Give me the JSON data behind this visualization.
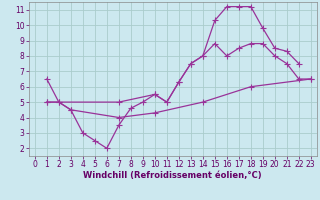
{
  "background_color": "#cce8ef",
  "line_color": "#993399",
  "grid_color": "#aacccc",
  "xlabel": "Windchill (Refroidissement éolien,°C)",
  "xlim": [
    -0.5,
    23.5
  ],
  "ylim": [
    1.5,
    11.5
  ],
  "xticks": [
    0,
    1,
    2,
    3,
    4,
    5,
    6,
    7,
    8,
    9,
    10,
    11,
    12,
    13,
    14,
    15,
    16,
    17,
    18,
    19,
    20,
    21,
    22,
    23
  ],
  "yticks": [
    2,
    3,
    4,
    5,
    6,
    7,
    8,
    9,
    10,
    11
  ],
  "line1_x": [
    1,
    2,
    3,
    4,
    5,
    6,
    7,
    8,
    9,
    10,
    11,
    12,
    13,
    14,
    15,
    16,
    17,
    18,
    19,
    20,
    21,
    22
  ],
  "line1_y": [
    6.5,
    5.0,
    4.5,
    3.0,
    2.5,
    2.0,
    3.5,
    4.6,
    5.0,
    5.5,
    5.0,
    6.3,
    7.5,
    8.0,
    10.3,
    11.2,
    11.2,
    11.2,
    9.8,
    8.5,
    8.3,
    7.5
  ],
  "line2_x": [
    1,
    7,
    10,
    11,
    12,
    13,
    14,
    15,
    16,
    17,
    18,
    19,
    20,
    21,
    22,
    23
  ],
  "line2_y": [
    5.0,
    5.0,
    5.5,
    5.0,
    6.3,
    7.5,
    8.0,
    8.8,
    8.0,
    8.5,
    8.8,
    8.8,
    8.0,
    7.5,
    6.5,
    6.5
  ],
  "line3_x": [
    1,
    2,
    3,
    7,
    10,
    14,
    18,
    23
  ],
  "line3_y": [
    5.0,
    5.0,
    4.5,
    4.0,
    4.3,
    5.0,
    6.0,
    6.5
  ],
  "marker_size": 2.5,
  "linewidth": 0.9,
  "xlabel_fontsize": 6,
  "tick_fontsize": 5.5,
  "label_color": "#660066"
}
